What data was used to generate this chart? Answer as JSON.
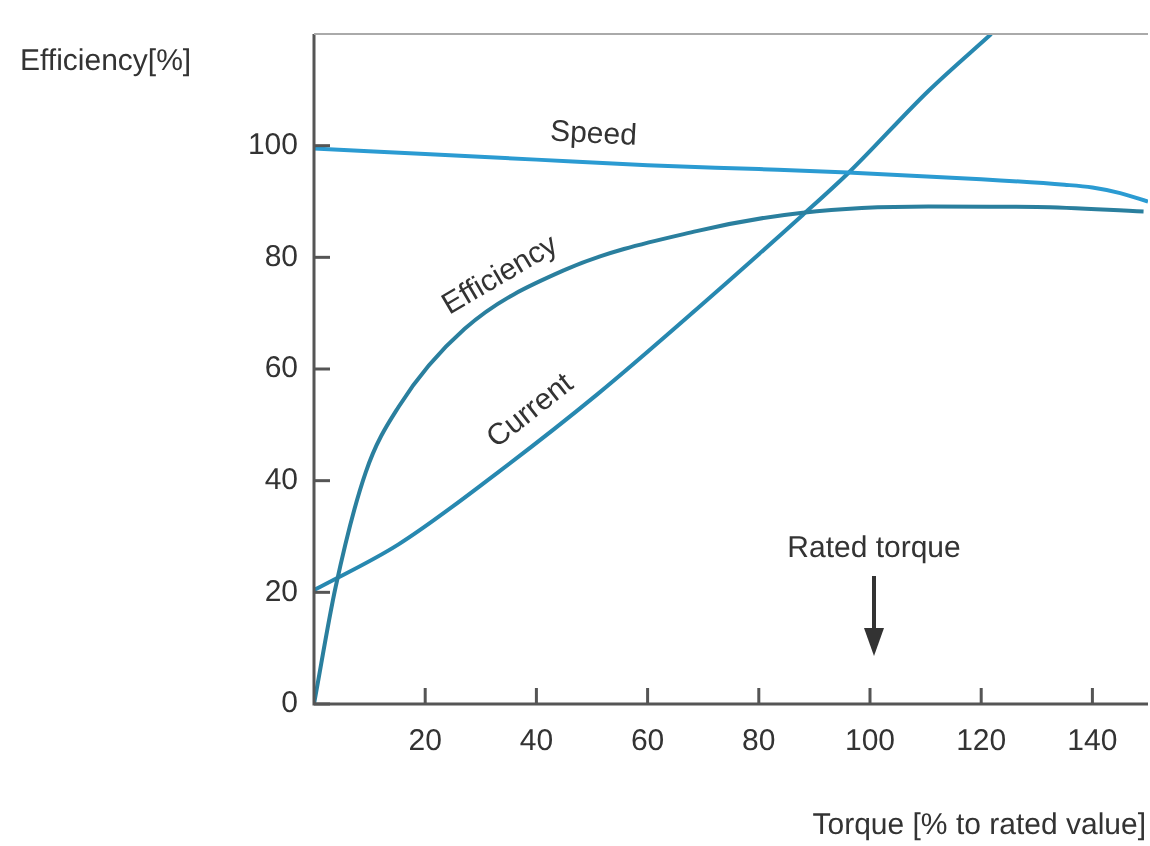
{
  "chart_data": {
    "type": "line",
    "xlabel": "Torque [% to rated value]",
    "ylabel": "Efficiency[%]",
    "xlim": [
      0,
      150
    ],
    "xticks": [
      20,
      40,
      60,
      80,
      100,
      120,
      140
    ],
    "ylim": [
      0,
      120
    ],
    "yticks": [
      0,
      20,
      40,
      60,
      80,
      100
    ],
    "grid": false,
    "legend": false,
    "marker": "none",
    "line_style": "solid",
    "annotations": [
      "Rated torque"
    ],
    "series": [
      {
        "name": "Speed",
        "color": "#2b9bd2",
        "x": [
          0,
          20,
          40,
          60,
          80,
          96,
          120,
          135,
          140,
          145,
          150
        ],
        "values": [
          99.5,
          98.5,
          97.5,
          96.5,
          95.8,
          95.2,
          94,
          93,
          92.5,
          91.5,
          90
        ]
      },
      {
        "name": "Efficiency",
        "color": "#2a7f9e",
        "x": [
          0,
          3.9,
          9.3,
          15.2,
          27.1,
          45,
          68.8,
          87.9,
          110.5,
          130,
          149.2
        ],
        "values": [
          0,
          21,
          41.5,
          53.2,
          67.2,
          77.7,
          84.7,
          88,
          89.1,
          89,
          88.2
        ]
      },
      {
        "name": "Current",
        "color": "#2788b0",
        "x": [
          0,
          15.2,
          33.1,
          51,
          68.8,
          87.9,
          96.2,
          110.5,
          121.8
        ],
        "values": [
          20.4,
          28.6,
          41.5,
          55.5,
          70.7,
          87.6,
          95.2,
          109.8,
          120
        ]
      }
    ]
  }
}
